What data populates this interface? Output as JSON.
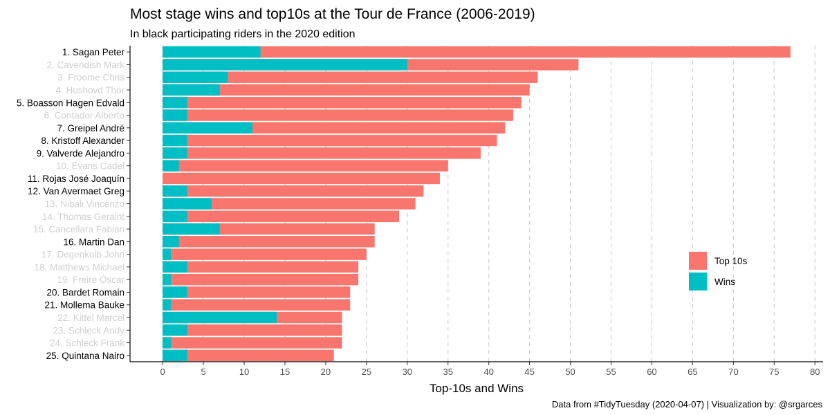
{
  "chart_data": {
    "type": "bar",
    "orientation": "horizontal",
    "stacked": false,
    "title": "Most stage wins and top10s at the Tour de France (2006-2019)",
    "subtitle": "In black participating riders in the 2020 edition",
    "xlabel": "Top-10s and Wins",
    "ylabel": "",
    "caption": "Data from #TidyTuesday (2020-04-07) | Visualization by: @srgarces",
    "xlim": [
      -4,
      81
    ],
    "xticks": [
      0,
      5,
      10,
      15,
      20,
      25,
      30,
      35,
      40,
      45,
      50,
      55,
      60,
      65,
      70,
      75,
      80
    ],
    "grid": "vertical dashed",
    "legend_position": "right",
    "categories": [
      "1. Sagan Peter",
      "2. Cavendish Mark",
      "3. Froome Chris",
      "4. Hushovd Thor",
      "5. Boasson Hagen Edvald",
      "6. Contador Alberto",
      "7. Greipel André",
      "8. Kristoff Alexander",
      "9. Valverde Alejandro",
      "10. Evans Cadel",
      "11. Rojas José Joaquín",
      "12. Van Avermaet Greg",
      "13. Nibali Vincenzo",
      "14. Thomas Geraint",
      "15. Cancellara Fabian",
      "16. Martin Dan",
      "17. Degenkolb John",
      "18. Matthews Michael",
      "19. Freire Óscar",
      "20. Bardet Romain",
      "21. Mollema Bauke",
      "22. Kittel Marcel",
      "23. Schleck Andy",
      "24. Schleck Fränk",
      "25. Quintana Nairo"
    ],
    "participating_2020": [
      true,
      false,
      false,
      false,
      true,
      false,
      true,
      true,
      true,
      false,
      true,
      true,
      false,
      false,
      false,
      true,
      false,
      false,
      false,
      true,
      true,
      false,
      false,
      false,
      true
    ],
    "series": [
      {
        "name": "Top 10s",
        "color": "#F8766D",
        "values": [
          77,
          51,
          46,
          45,
          44,
          43,
          42,
          41,
          39,
          35,
          34,
          32,
          31,
          29,
          26,
          26,
          25,
          24,
          24,
          23,
          23,
          22,
          22,
          22,
          21
        ]
      },
      {
        "name": "Wins",
        "color": "#00BFC4",
        "values": [
          12,
          30,
          8,
          7,
          3,
          3,
          11,
          3,
          3,
          2,
          0,
          3,
          6,
          3,
          7,
          2,
          1,
          3,
          1,
          3,
          1,
          14,
          3,
          1,
          3
        ]
      }
    ],
    "label_colors": {
      "participating": "#000000",
      "other": "#d0d0d0"
    }
  }
}
